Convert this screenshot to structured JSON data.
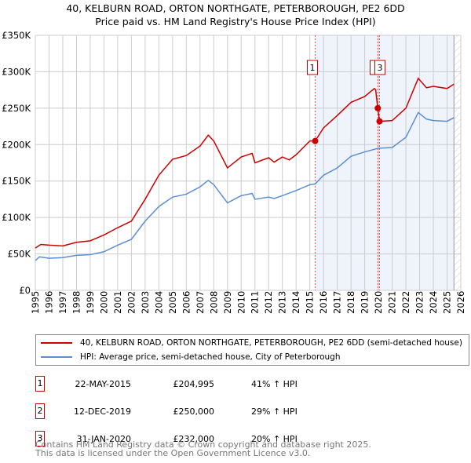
{
  "title": "40, KELBURN ROAD, ORTON NORTHGATE, PETERBOROUGH, PE2 6DD",
  "subtitle": "Price paid vs. HM Land Registry's House Price Index (HPI)",
  "chart_data": {
    "type": "line",
    "title": "40, KELBURN ROAD, ORTON NORTHGATE, PETERBOROUGH, PE2 6DD",
    "subtitle": "Price paid vs. HM Land Registry's House Price Index (HPI)",
    "xlim": [
      1995,
      2026
    ],
    "ylim": [
      0,
      350000
    ],
    "x_ticks": [
      "1995",
      "1996",
      "1997",
      "1998",
      "1999",
      "2000",
      "2001",
      "2002",
      "2003",
      "2004",
      "2005",
      "2006",
      "2007",
      "2008",
      "2009",
      "2010",
      "2011",
      "2012",
      "2013",
      "2014",
      "2015",
      "2016",
      "2017",
      "2018",
      "2019",
      "2020",
      "2021",
      "2022",
      "2023",
      "2024",
      "2025",
      "2026"
    ],
    "y_ticks": [
      {
        "v": 0,
        "label": "£0"
      },
      {
        "v": 50000,
        "label": "£50K"
      },
      {
        "v": 100000,
        "label": "£100K"
      },
      {
        "v": 150000,
        "label": "£150K"
      },
      {
        "v": 200000,
        "label": "£200K"
      },
      {
        "v": 250000,
        "label": "£250K"
      },
      {
        "v": 300000,
        "label": "£300K"
      },
      {
        "v": 350000,
        "label": "£350K"
      }
    ],
    "grid": true,
    "shaded_period": [
      2015.39,
      2025.5
    ],
    "series": [
      {
        "name": "40, KELBURN ROAD, ORTON NORTHGATE, PETERBOROUGH, PE2 6DD (semi-detached house)",
        "color": "#cc0000",
        "x": [
          1995,
          1995.4,
          1996,
          1997,
          1998,
          1999,
          2000,
          2001,
          2002,
          2003,
          2004,
          2005,
          2006,
          2007,
          2007.6,
          2008,
          2009,
          2010,
          2010.8,
          2011,
          2012,
          2012.4,
          2013,
          2013.5,
          2014,
          2015,
          2015.39,
          2016,
          2017,
          2018,
          2019,
          2019.7,
          2019.8,
          2019.95,
          2020.08,
          2021,
          2022,
          2022.9,
          2023.5,
          2024,
          2025,
          2025.5
        ],
        "y": [
          58000,
          63000,
          62000,
          61000,
          66000,
          68000,
          76000,
          86000,
          95000,
          125000,
          158000,
          180000,
          185000,
          198000,
          213000,
          205000,
          168000,
          183000,
          188000,
          175000,
          182000,
          176000,
          183000,
          179000,
          186000,
          205000,
          205000,
          223000,
          240000,
          258000,
          266000,
          277000,
          275000,
          250000,
          232000,
          233000,
          250000,
          291000,
          278000,
          280000,
          277000,
          283000
        ]
      },
      {
        "name": "HPI: Average price, semi-detached house, City of Peterborough",
        "color": "#5b8fd4",
        "x": [
          1995,
          1995.3,
          1996,
          1997,
          1998,
          1999,
          2000,
          2001,
          2002,
          2003,
          2004,
          2005,
          2006,
          2007,
          2007.6,
          2008,
          2009,
          2010,
          2010.8,
          2011,
          2012,
          2012.4,
          2013,
          2014,
          2015,
          2015.39,
          2016,
          2017,
          2018,
          2019,
          2020,
          2021,
          2022,
          2022.9,
          2023.5,
          2024,
          2025,
          2025.5
        ],
        "y": [
          41000,
          46000,
          44000,
          45000,
          48000,
          49000,
          53000,
          62000,
          70000,
          95000,
          115000,
          128000,
          132000,
          142000,
          151000,
          145000,
          120000,
          130000,
          133000,
          125000,
          128000,
          126000,
          130000,
          137000,
          145000,
          146000,
          158000,
          168000,
          184000,
          190000,
          195000,
          196000,
          210000,
          244000,
          235000,
          233000,
          232000,
          237000
        ]
      }
    ],
    "sales": [
      {
        "id": "1",
        "x": 2015.39,
        "y": 204995
      },
      {
        "id": "2",
        "x": 2019.95,
        "y": 250000
      },
      {
        "id": "3",
        "x": 2020.08,
        "y": 232000
      }
    ],
    "legend_position": "below"
  },
  "legend": {
    "property": "40, KELBURN ROAD, ORTON NORTHGATE, PETERBOROUGH, PE2 6DD (semi-detached house)",
    "hpi": "HPI: Average price, semi-detached house, City of Peterborough"
  },
  "transactions": [
    {
      "id": "1",
      "date": "22-MAY-2015",
      "price": "£204,995",
      "hpi": "41% ↑ HPI"
    },
    {
      "id": "2",
      "date": "12-DEC-2019",
      "price": "£250,000",
      "hpi": "29% ↑ HPI"
    },
    {
      "id": "3",
      "date": "31-JAN-2020",
      "price": "£232,000",
      "hpi": "20% ↑ HPI"
    }
  ],
  "footer": {
    "line1": "Contains HM Land Registry data © Crown copyright and database right 2025.",
    "line2": "This data is licensed under the Open Government Licence v3.0."
  }
}
